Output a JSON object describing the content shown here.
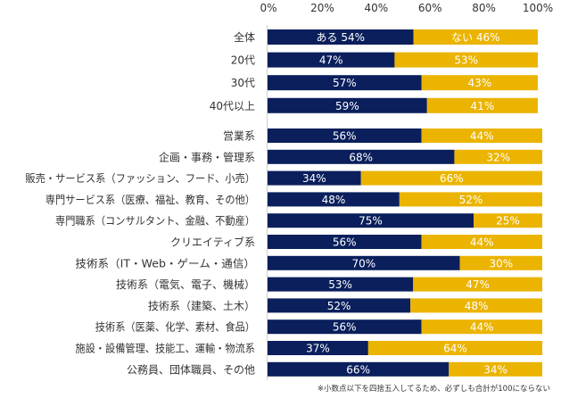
{
  "chart_data": {
    "type": "bar",
    "orientation": "horizontal",
    "stacked": true,
    "title": "",
    "xlabel": "",
    "ylabel": "",
    "xlim": [
      0,
      100
    ],
    "x_ticks": [
      "0%",
      "20%",
      "40%",
      "60%",
      "80%",
      "100%"
    ],
    "x_tick_values": [
      0,
      20,
      40,
      60,
      80,
      100
    ],
    "grid": false,
    "legend": "none",
    "groups": [
      {
        "name": "age",
        "categories": [
          "全体",
          "20代",
          "30代",
          "40代以上"
        ],
        "series": [
          {
            "name": "ある",
            "color": "#0a1f5c",
            "values": [
              54,
              47,
              57,
              59
            ],
            "labels": [
              "ある 54%",
              "47%",
              "57%",
              "59%"
            ]
          },
          {
            "name": "ない",
            "color": "#ebb400",
            "values": [
              46,
              53,
              43,
              41
            ],
            "labels": [
              "ない 46%",
              "53%",
              "43%",
              "41%"
            ]
          }
        ]
      },
      {
        "name": "occupation",
        "categories": [
          "営業系",
          "企画・事務・管理系",
          "販売・サービス系（ファッション、フード、小売）",
          "専門サービス系（医療、福祉、教育、その他）",
          "専門職系（コンサルタント、金融、不動産）",
          "クリエイティブ系",
          "技術系（IT・Web・ゲーム・通信）",
          "技術系（電気、電子、機械）",
          "技術系（建築、土木）",
          "技術系（医薬、化学、素材、食品）",
          "施設・設備管理、技能工、運輸・物流系",
          "公務員、団体職員、その他"
        ],
        "series": [
          {
            "name": "ある",
            "color": "#0a1f5c",
            "values": [
              56,
              68,
              34,
              48,
              75,
              56,
              70,
              53,
              52,
              56,
              37,
              66
            ],
            "labels": [
              "56%",
              "68%",
              "34%",
              "48%",
              "75%",
              "56%",
              "70%",
              "53%",
              "52%",
              "56%",
              "37%",
              "66%"
            ]
          },
          {
            "name": "ない",
            "color": "#ebb400",
            "values": [
              44,
              32,
              66,
              52,
              25,
              44,
              30,
              47,
              48,
              44,
              64,
              34
            ],
            "labels": [
              "44%",
              "32%",
              "66%",
              "52%",
              "25%",
              "44%",
              "30%",
              "47%",
              "48%",
              "44%",
              "64%",
              "34%"
            ]
          }
        ]
      }
    ],
    "annotations": [
      "※小数点以下を四捨五入してるため、必ずしも合計が100にならない"
    ]
  },
  "colors": {
    "series_a": "#0a1f5c",
    "series_b": "#ebb400",
    "axis": "#d0d0d0",
    "text": "#333333"
  }
}
